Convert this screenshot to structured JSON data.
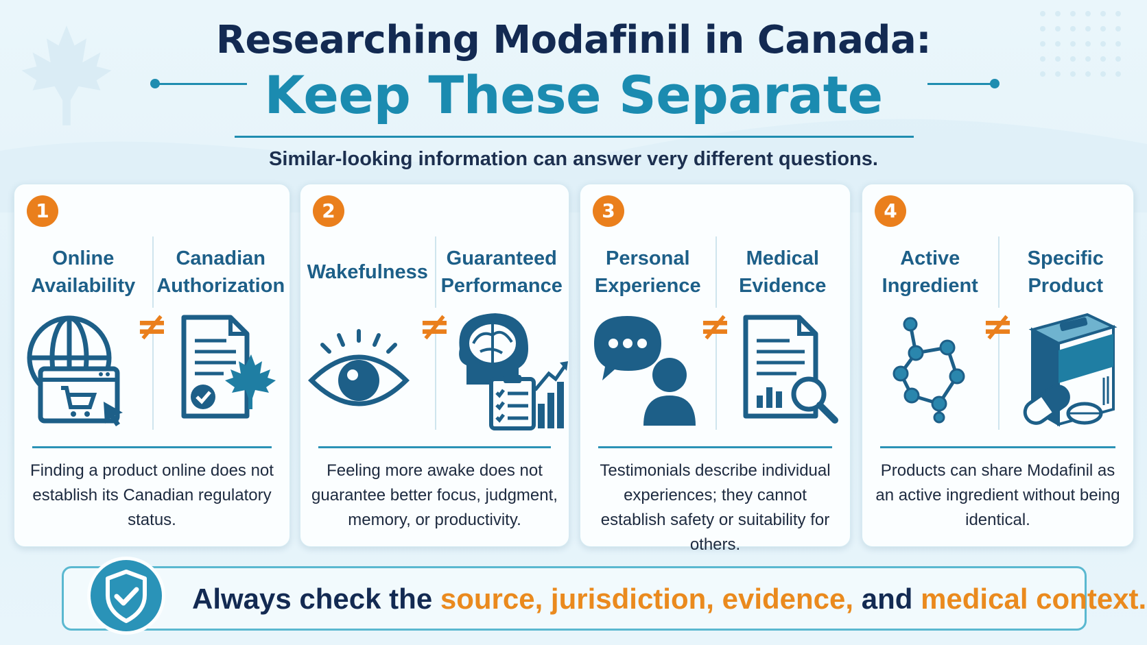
{
  "header": {
    "title": "Researching Modafinil in Canada:",
    "subtitle": "Keep These Separate",
    "tagline": "Similar-looking information can answer very different questions."
  },
  "colors": {
    "navy": "#132a52",
    "teal": "#1b8bb0",
    "icon_blue": "#1d5f88",
    "orange": "#ea7f1c",
    "background": "#e3f2f9"
  },
  "cards": [
    {
      "number": "1",
      "left_heading": "Online Availability",
      "right_heading": "Canadian Authorization",
      "not_equal": "≠",
      "left_icon": "globe-shopping-cart-icon",
      "right_icon": "document-maple-leaf-icon",
      "description": "Finding a product online does not establish its Canadian regulatory status."
    },
    {
      "number": "2",
      "left_heading": "Wakefulness",
      "right_heading": "Guaranteed Performance",
      "not_equal": "≠",
      "left_icon": "eye-icon",
      "right_icon": "brain-checklist-chart-icon",
      "description": "Feeling more awake does not guarantee better focus, judgment, memory, or productivity."
    },
    {
      "number": "3",
      "left_heading": "Personal Experience",
      "right_heading": "Medical Evidence",
      "not_equal": "≠",
      "left_icon": "speech-bubble-person-icon",
      "right_icon": "report-magnifier-icon",
      "description": "Testimonials describe individual experiences; they cannot establish safety or suitability for others."
    },
    {
      "number": "4",
      "left_heading": "Active Ingredient",
      "right_heading": "Specific Product",
      "not_equal": "≠",
      "left_icon": "molecule-icon",
      "right_icon": "medicine-box-pills-icon",
      "description": "Products can share Modafinil as an active ingredient without being identical."
    }
  ],
  "footer": {
    "icon": "shield-check-icon",
    "prefix": "Always check the",
    "term_source": "source,",
    "term_jurisdiction": "jurisdiction,",
    "term_evidence": "evidence,",
    "conjunction": "and",
    "term_medical": "medical context."
  }
}
